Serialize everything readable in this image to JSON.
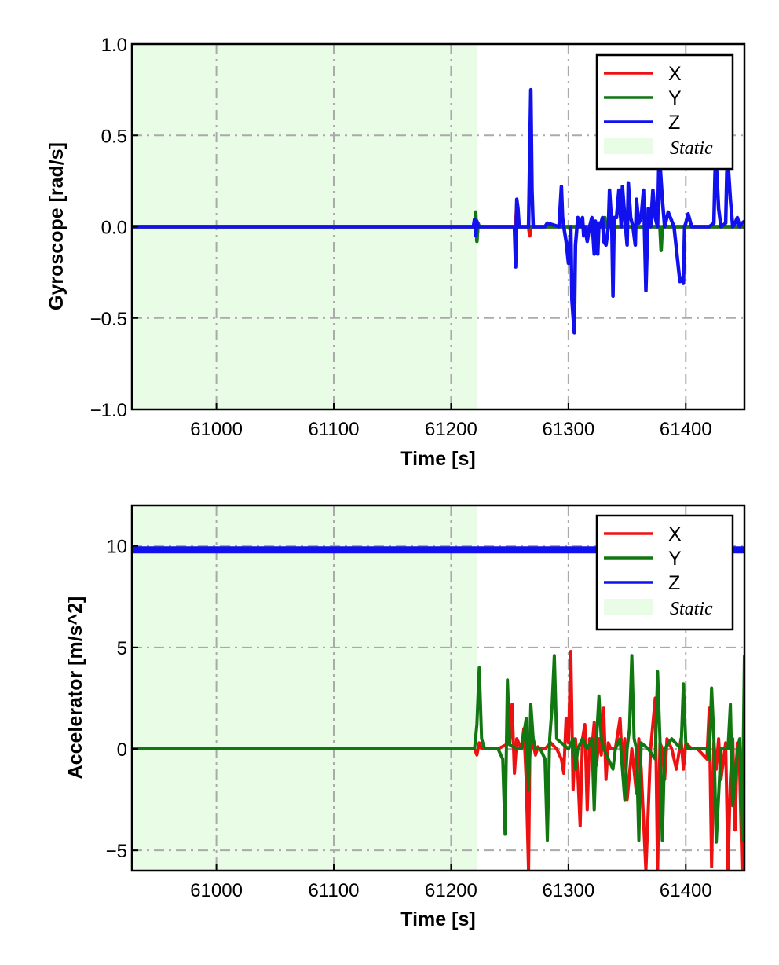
{
  "chart_data": [
    {
      "type": "line",
      "title": "",
      "xlabel": "Time [s]",
      "ylabel": "Gyroscope [rad/s]",
      "xlim": [
        60928,
        61450
      ],
      "ylim": [
        -1.0,
        1.0
      ],
      "x_ticks": [
        61000,
        61100,
        61200,
        61300,
        61400
      ],
      "y_ticks": [
        -1.0,
        -0.5,
        0.0,
        0.5,
        1.0
      ],
      "y_tick_labels": [
        "−1.0",
        "−0.5",
        "0.0",
        "0.5",
        "1.0"
      ],
      "grid": true,
      "legend_position": "top-right",
      "static_region": {
        "label": "Static",
        "x_start": 60928,
        "x_end": 61222,
        "color": "#e8fce6"
      },
      "series": [
        {
          "name": "X",
          "color": "#ee1111",
          "x": [
            60928,
            61220,
            61221,
            61222,
            61223,
            61255,
            61256,
            61257,
            61266,
            61267,
            61268,
            61300,
            61378,
            61379,
            61380,
            61450
          ],
          "y": [
            0,
            0,
            0.05,
            -0.05,
            0,
            0,
            0.12,
            0,
            0,
            -0.05,
            0,
            0,
            0,
            -0.08,
            0,
            0
          ]
        },
        {
          "name": "Y",
          "color": "#117711",
          "x": [
            60928,
            61220,
            61221,
            61222,
            61223,
            61224,
            61330,
            61331,
            61332,
            61378,
            61379,
            61380,
            61450
          ],
          "y": [
            0,
            0,
            0.08,
            -0.08,
            0.02,
            0,
            0,
            0.05,
            0,
            0,
            -0.13,
            0,
            0
          ]
        },
        {
          "name": "Z",
          "color": "#1111ee",
          "x": [
            60928,
            61219,
            61220,
            61221,
            61222,
            61223,
            61254,
            61255,
            61256,
            61257,
            61258,
            61266,
            61267,
            61268,
            61269,
            61270,
            61280,
            61282,
            61292,
            61294,
            61295,
            61296,
            61298,
            61300,
            61302,
            61303,
            61305,
            61306,
            61308,
            61310,
            61312,
            61313,
            61314,
            61316,
            61318,
            61320,
            61322,
            61323,
            61325,
            61326,
            61327,
            61329,
            61330,
            61332,
            61334,
            61335,
            61337,
            61338,
            61339,
            61341,
            61343,
            61345,
            61346,
            61348,
            61350,
            61351,
            61353,
            61355,
            61357,
            61358,
            61360,
            61362,
            61364,
            61366,
            61368,
            61370,
            61372,
            61374,
            61376,
            61377,
            61378,
            61380,
            61382,
            61385,
            61390,
            61395,
            61396,
            61398,
            61399,
            61400,
            61402,
            61405,
            61420,
            61424,
            61425,
            61426,
            61428,
            61430,
            61434,
            61435,
            61436,
            61438,
            61440,
            61442,
            61444,
            61446,
            61448,
            61450
          ],
          "y": [
            0,
            0,
            0.04,
            -0.05,
            0.03,
            0,
            0,
            -0.22,
            0.15,
            0.1,
            0,
            0,
            0.4,
            0.75,
            0.2,
            0,
            0,
            0.02,
            0,
            0.22,
            0.05,
            0,
            -0.08,
            -0.2,
            0,
            -0.4,
            -0.58,
            -0.1,
            0.05,
            0,
            0.05,
            -0.05,
            0,
            -0.08,
            0,
            0.05,
            -0.15,
            0.03,
            -0.15,
            0.02,
            0,
            0.05,
            -0.08,
            -0.1,
            0,
            0.2,
            0,
            -0.38,
            0.05,
            0.05,
            0.2,
            0,
            0.22,
            0.05,
            -0.1,
            0.24,
            0.05,
            0,
            -0.1,
            0.15,
            0.02,
            0.05,
            0.2,
            -0.35,
            0.1,
            0,
            0.2,
            0.05,
            0,
            0.32,
            0.35,
            0.15,
            0,
            0.08,
            0,
            -0.3,
            -0.28,
            -0.31,
            0,
            0.02,
            0.07,
            0,
            0,
            0.02,
            0.3,
            0.35,
            0.1,
            0,
            0.02,
            0.3,
            0.35,
            0.15,
            0,
            0.02,
            0.05,
            0,
            0.02,
            0.03
          ]
        }
      ],
      "legend": [
        "X",
        "Y",
        "Z",
        "Static"
      ]
    },
    {
      "type": "line",
      "title": "",
      "xlabel": "Time [s]",
      "ylabel": "Accelerator [m/s^2]",
      "xlim": [
        60928,
        61450
      ],
      "ylim": [
        -6,
        12
      ],
      "x_ticks": [
        61000,
        61100,
        61200,
        61300,
        61400
      ],
      "y_ticks": [
        -5,
        0,
        5,
        10
      ],
      "y_tick_labels": [
        "−5",
        "0",
        "5",
        "10"
      ],
      "grid": true,
      "legend_position": "top-right",
      "static_region": {
        "label": "Static",
        "x_start": 60928,
        "x_end": 61222,
        "color": "#e8fce6"
      },
      "series": [
        {
          "name": "X",
          "color": "#ee1111",
          "x": [
            60928,
            61220,
            61222,
            61224,
            61226,
            61240,
            61250,
            61252,
            61254,
            61256,
            61260,
            61262,
            61264,
            61266,
            61267,
            61268,
            61270,
            61272,
            61274,
            61276,
            61280,
            61285,
            61290,
            61294,
            61296,
            61298,
            61300,
            61302,
            61304,
            61306,
            61308,
            61310,
            61312,
            61314,
            61316,
            61318,
            61320,
            61322,
            61324,
            61326,
            61328,
            61330,
            61332,
            61334,
            61336,
            61340,
            61344,
            61346,
            61348,
            61350,
            61354,
            61358,
            61360,
            61362,
            61366,
            61370,
            61374,
            61376,
            61378,
            61380,
            61382,
            61384,
            61388,
            61392,
            61396,
            61398,
            61400,
            61405,
            61410,
            61418,
            61420,
            61422,
            61424,
            61426,
            61428,
            61430,
            61434,
            61436,
            61438,
            61440,
            61442,
            61444,
            61446,
            61448,
            61450
          ],
          "y": [
            0,
            0,
            -0.3,
            0.3,
            0,
            0,
            0.3,
            2.2,
            -1.2,
            0.5,
            0,
            1.0,
            -1.5,
            -6.0,
            -0.5,
            0.8,
            0.2,
            -0.3,
            0.1,
            0,
            0,
            0.3,
            0,
            -0.5,
            -1.2,
            1.5,
            0.3,
            4.8,
            -2.0,
            0.5,
            -1.2,
            -3.8,
            0.5,
            1.2,
            -3.0,
            0.5,
            0,
            1.3,
            -0.8,
            0.5,
            -0.3,
            2.0,
            -1.5,
            0.3,
            0,
            0,
            1.5,
            -0.8,
            0.5,
            -2.5,
            0,
            -2.2,
            0.5,
            -1.0,
            -6.0,
            0,
            2.5,
            -6.0,
            0.3,
            0,
            -1.5,
            0.5,
            0,
            -1.0,
            0.5,
            -1.0,
            0.3,
            0,
            0,
            -0.5,
            2.0,
            -5.8,
            0.3,
            -1.0,
            0.5,
            -1.5,
            0.3,
            -6.0,
            -1.5,
            0.5,
            -4.0,
            0.3,
            -1.2,
            -6.0,
            0.2
          ]
        },
        {
          "name": "Y",
          "color": "#117711",
          "x": [
            60928,
            61220,
            61222,
            61224,
            61226,
            61228,
            61230,
            61240,
            61244,
            61246,
            61248,
            61250,
            61256,
            61260,
            61264,
            61266,
            61268,
            61270,
            61272,
            61276,
            61280,
            61282,
            61284,
            61286,
            61288,
            61290,
            61300,
            61304,
            61306,
            61308,
            61312,
            61316,
            61320,
            61322,
            61324,
            61326,
            61328,
            61330,
            61334,
            61338,
            61340,
            61344,
            61348,
            61350,
            61352,
            61354,
            61356,
            61358,
            61360,
            61362,
            61368,
            61374,
            61376,
            61378,
            61380,
            61382,
            61388,
            61396,
            61398,
            61400,
            61402,
            61408,
            61418,
            61420,
            61422,
            61424,
            61426,
            61430,
            61436,
            61438,
            61440,
            61444,
            61446,
            61448,
            61450
          ],
          "y": [
            0,
            0,
            1.2,
            4.0,
            0.5,
            0.1,
            0,
            0,
            -0.5,
            -4.2,
            3.4,
            0.2,
            0,
            0,
            1.5,
            -2.0,
            2.2,
            0.5,
            0,
            0,
            -0.5,
            -4.5,
            0.5,
            2.0,
            4.6,
            0.5,
            0,
            0.5,
            -1.0,
            0,
            0.5,
            0,
            0.5,
            -3.0,
            0.5,
            2.6,
            0.5,
            0,
            -0.5,
            -1.0,
            0,
            0.5,
            -2.5,
            0,
            1.0,
            4.6,
            0.5,
            0,
            -4.5,
            0.3,
            0,
            -0.5,
            3.8,
            0.5,
            -4.5,
            0,
            0.5,
            0,
            3.2,
            0.3,
            0,
            0,
            0,
            -0.5,
            3.0,
            0.5,
            -4.6,
            0,
            0,
            2.2,
            -2.8,
            0,
            0.5,
            -4.5,
            4.6
          ]
        },
        {
          "name": "Z",
          "color": "#1111ee",
          "x": [
            60928,
            61450
          ],
          "y": [
            9.8,
            9.8
          ]
        }
      ],
      "legend": [
        "X",
        "Y",
        "Z",
        "Static"
      ]
    }
  ]
}
